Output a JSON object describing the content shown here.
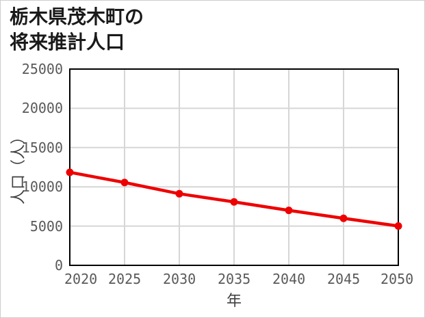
{
  "page": {
    "background_color": "#ffffff",
    "frame_border_color": "#cccccc"
  },
  "title": {
    "line1": "栃木県茂木町の",
    "line2": "将来推計人口"
  },
  "chart_data": {
    "type": "line",
    "title": "栃木県茂木町の将来推計人口",
    "xlabel": "年",
    "ylabel": "人口（人）",
    "x": [
      2020,
      2025,
      2030,
      2035,
      2040,
      2045,
      2050
    ],
    "series": [
      {
        "name": "将来推計人口",
        "values": [
          11850,
          10550,
          9120,
          8080,
          7000,
          5990,
          5010
        ]
      }
    ],
    "xlim": [
      2020,
      2050
    ],
    "ylim": [
      0,
      25000
    ],
    "x_ticks": [
      2020,
      2025,
      2030,
      2035,
      2040,
      2045,
      2050
    ],
    "y_ticks": [
      0,
      5000,
      10000,
      15000,
      20000,
      25000
    ],
    "grid": true,
    "legend": false,
    "line_color": "#ee0000",
    "marker": "circle",
    "gridline_color": "#d6d6d6",
    "axis_border_color": "#000000",
    "tick_label_color": "#595959"
  }
}
